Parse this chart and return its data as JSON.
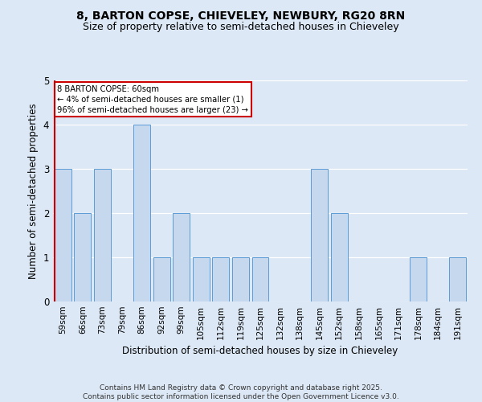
{
  "title_line1": "8, BARTON COPSE, CHIEVELEY, NEWBURY, RG20 8RN",
  "title_line2": "Size of property relative to semi-detached houses in Chieveley",
  "categories": [
    "59sqm",
    "66sqm",
    "73sqm",
    "79sqm",
    "86sqm",
    "92sqm",
    "99sqm",
    "105sqm",
    "112sqm",
    "119sqm",
    "125sqm",
    "132sqm",
    "138sqm",
    "145sqm",
    "152sqm",
    "158sqm",
    "165sqm",
    "171sqm",
    "178sqm",
    "184sqm",
    "191sqm"
  ],
  "values": [
    3,
    2,
    3,
    0,
    4,
    1,
    2,
    1,
    1,
    1,
    1,
    0,
    0,
    3,
    2,
    0,
    0,
    0,
    1,
    0,
    1
  ],
  "bar_color": "#c5d8ee",
  "bar_edge_color": "#5b9bd5",
  "highlight_color": "#cc0000",
  "ylabel": "Number of semi-detached properties",
  "xlabel": "Distribution of semi-detached houses by size in Chieveley",
  "ylim": [
    0,
    5
  ],
  "yticks": [
    0,
    1,
    2,
    3,
    4,
    5
  ],
  "annotation_title": "8 BARTON COPSE: 60sqm",
  "annotation_line1": "← 4% of semi-detached houses are smaller (1)",
  "annotation_line2": "96% of semi-detached houses are larger (23) →",
  "annotation_box_color": "#ffffff",
  "annotation_box_edge": "#cc0000",
  "footer_line1": "Contains HM Land Registry data © Crown copyright and database right 2025.",
  "footer_line2": "Contains public sector information licensed under the Open Government Licence v3.0.",
  "background_color": "#dce8f5",
  "grid_color": "#ffffff",
  "title_fontsize": 10,
  "subtitle_fontsize": 9,
  "tick_fontsize": 7.5,
  "axis_label_fontsize": 8.5,
  "footer_fontsize": 6.5
}
